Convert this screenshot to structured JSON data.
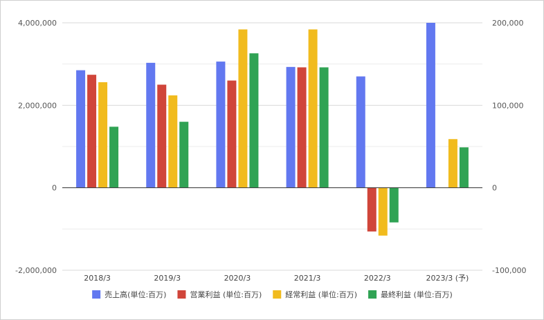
{
  "chart_data": {
    "type": "bar",
    "categories": [
      "2018/3",
      "2019/3",
      "2020/3",
      "2021/3",
      "2022/3",
      "2023/3 (予)"
    ],
    "left_axis": {
      "min": -2000000,
      "max": 4000000,
      "ticks": [
        -2000000,
        0,
        2000000,
        4000000
      ],
      "tick_labels": [
        "-2,000,000",
        "0",
        "2,000,000",
        "4,000,000"
      ]
    },
    "right_axis": {
      "min": -100000,
      "max": 200000,
      "ticks": [
        -100000,
        0,
        100000,
        200000
      ],
      "tick_labels": [
        "-100,000",
        "0",
        "100,000",
        "200,000"
      ]
    },
    "grid": true,
    "legend_position": "bottom",
    "series": [
      {
        "name": "売上高(単位:百万)",
        "color": "#6278f0",
        "axis": "left",
        "values": [
          2850000,
          3030000,
          3060000,
          2930000,
          2700000,
          4000000
        ]
      },
      {
        "name": "営業利益 (単位:百万)",
        "color": "#d0453a",
        "axis": "right",
        "values": [
          137000,
          125000,
          130000,
          146000,
          -53000,
          null
        ]
      },
      {
        "name": "経常利益 (単位:百万)",
        "color": "#f1bb1e",
        "axis": "right",
        "values": [
          128000,
          112000,
          192000,
          192000,
          -58000,
          59000
        ]
      },
      {
        "name": "最終利益 (単位:百万)",
        "color": "#30a354",
        "axis": "right",
        "values": [
          74000,
          80000,
          163000,
          146000,
          -42000,
          49000
        ]
      }
    ]
  }
}
